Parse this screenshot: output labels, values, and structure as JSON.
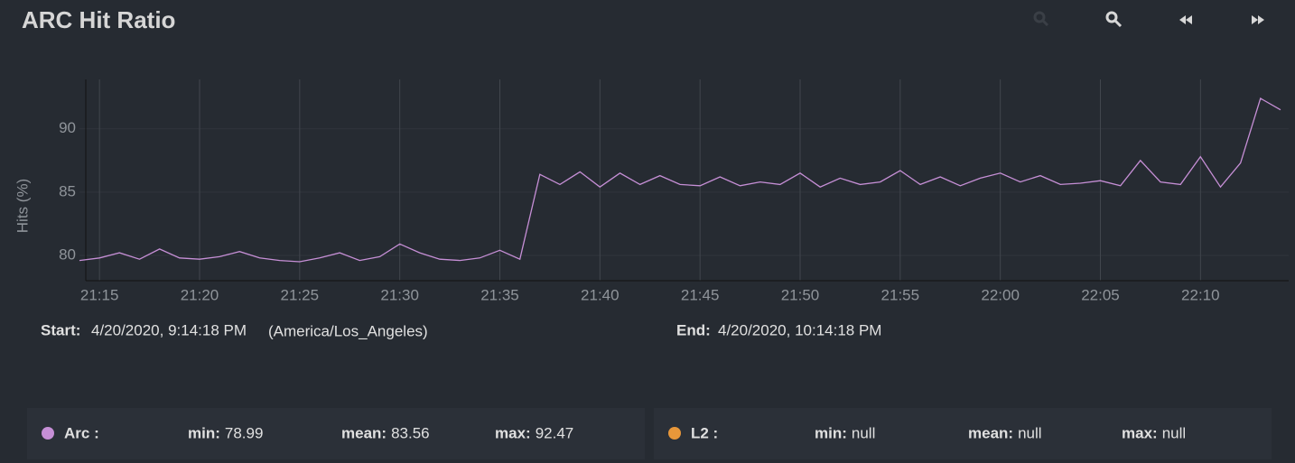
{
  "chart_data": {
    "type": "line",
    "title": "ARC Hit Ratio",
    "y_label": "Hits (%)",
    "x": [
      "21:14",
      "21:15",
      "21:16",
      "21:17",
      "21:18",
      "21:19",
      "21:20",
      "21:21",
      "21:22",
      "21:23",
      "21:24",
      "21:25",
      "21:26",
      "21:27",
      "21:28",
      "21:29",
      "21:30",
      "21:31",
      "21:32",
      "21:33",
      "21:34",
      "21:35",
      "21:36",
      "21:37",
      "21:38",
      "21:39",
      "21:40",
      "21:41",
      "21:42",
      "21:43",
      "21:44",
      "21:45",
      "21:46",
      "21:47",
      "21:48",
      "21:49",
      "21:50",
      "21:51",
      "21:52",
      "21:53",
      "21:54",
      "21:55",
      "21:56",
      "21:57",
      "21:58",
      "21:59",
      "22:00",
      "22:01",
      "22:02",
      "22:03",
      "22:04",
      "22:05",
      "22:06",
      "22:07",
      "22:08",
      "22:09",
      "22:10",
      "22:11",
      "22:12",
      "22:13",
      "22:14"
    ],
    "xlim": [
      "21:14",
      "22:14"
    ],
    "xticks": [
      "21:15",
      "21:20",
      "21:25",
      "21:30",
      "21:35",
      "21:40",
      "21:45",
      "21:50",
      "21:55",
      "22:00",
      "22:05",
      "22:10"
    ],
    "ylim": [
      78,
      93.9
    ],
    "yticks": [
      80,
      85,
      90
    ],
    "grid": true,
    "stat_labels": {
      "min": "min:",
      "mean": "mean:",
      "max": "max:"
    },
    "series": [
      {
        "name": "Arc :",
        "color": "#c68fd6",
        "values": [
          79.6,
          79.8,
          80.2,
          79.7,
          80.5,
          79.8,
          79.7,
          79.9,
          80.3,
          79.8,
          79.6,
          79.5,
          79.8,
          80.2,
          79.6,
          79.9,
          80.9,
          80.2,
          79.7,
          79.6,
          79.8,
          80.4,
          79.7,
          86.4,
          85.6,
          86.6,
          85.4,
          86.5,
          85.6,
          86.3,
          85.6,
          85.5,
          86.2,
          85.5,
          85.8,
          85.6,
          86.5,
          85.4,
          86.1,
          85.6,
          85.8,
          86.7,
          85.6,
          86.2,
          85.5,
          86.1,
          86.5,
          85.8,
          86.3,
          85.6,
          85.7,
          85.9,
          85.5,
          87.5,
          85.8,
          85.6,
          87.8,
          85.4,
          87.3,
          92.4,
          91.5
        ],
        "min": 78.99,
        "mean": 83.56,
        "max": 92.47
      },
      {
        "name": "L2 :",
        "color": "#e8973a",
        "values": [
          null,
          null,
          null,
          null,
          null,
          null,
          null,
          null,
          null,
          null,
          null,
          null,
          null,
          null,
          null,
          null,
          null,
          null,
          null,
          null,
          null,
          null,
          null,
          null,
          null,
          null,
          null,
          null,
          null,
          null,
          null,
          null,
          null,
          null,
          null,
          null,
          null,
          null,
          null,
          null,
          null,
          null,
          null,
          null,
          null,
          null,
          null,
          null,
          null,
          null,
          null,
          null,
          null,
          null,
          null,
          null,
          null,
          null,
          null,
          null,
          null
        ],
        "min": "null",
        "mean": "null",
        "max": "null"
      }
    ]
  },
  "range": {
    "start_label": "Start:",
    "start": "4/20/2020, 9:14:18 PM",
    "timezone": "(America/Los_Angeles)",
    "end_label": "End:",
    "end": "4/20/2020, 10:14:18 PM"
  }
}
